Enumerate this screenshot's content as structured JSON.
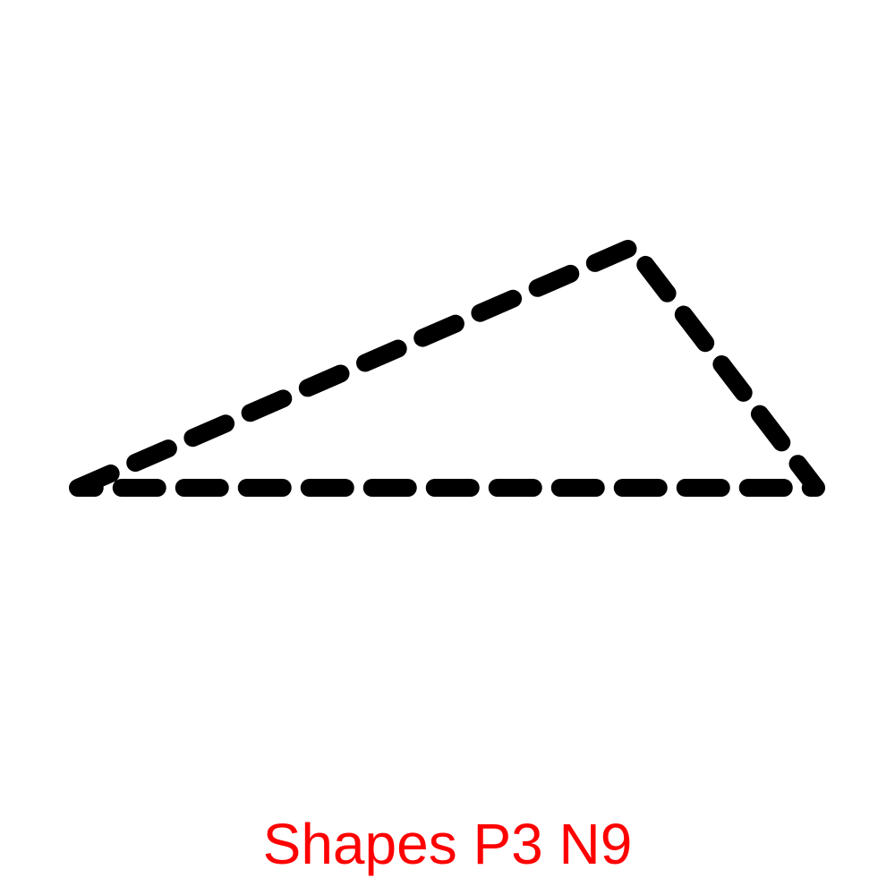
{
  "caption": {
    "text": "Shapes P3 N9",
    "color": "#ff0000"
  },
  "shape": {
    "kind": "triangle",
    "outline": "dashed",
    "stroke_color": "#000000",
    "fill": "none"
  }
}
